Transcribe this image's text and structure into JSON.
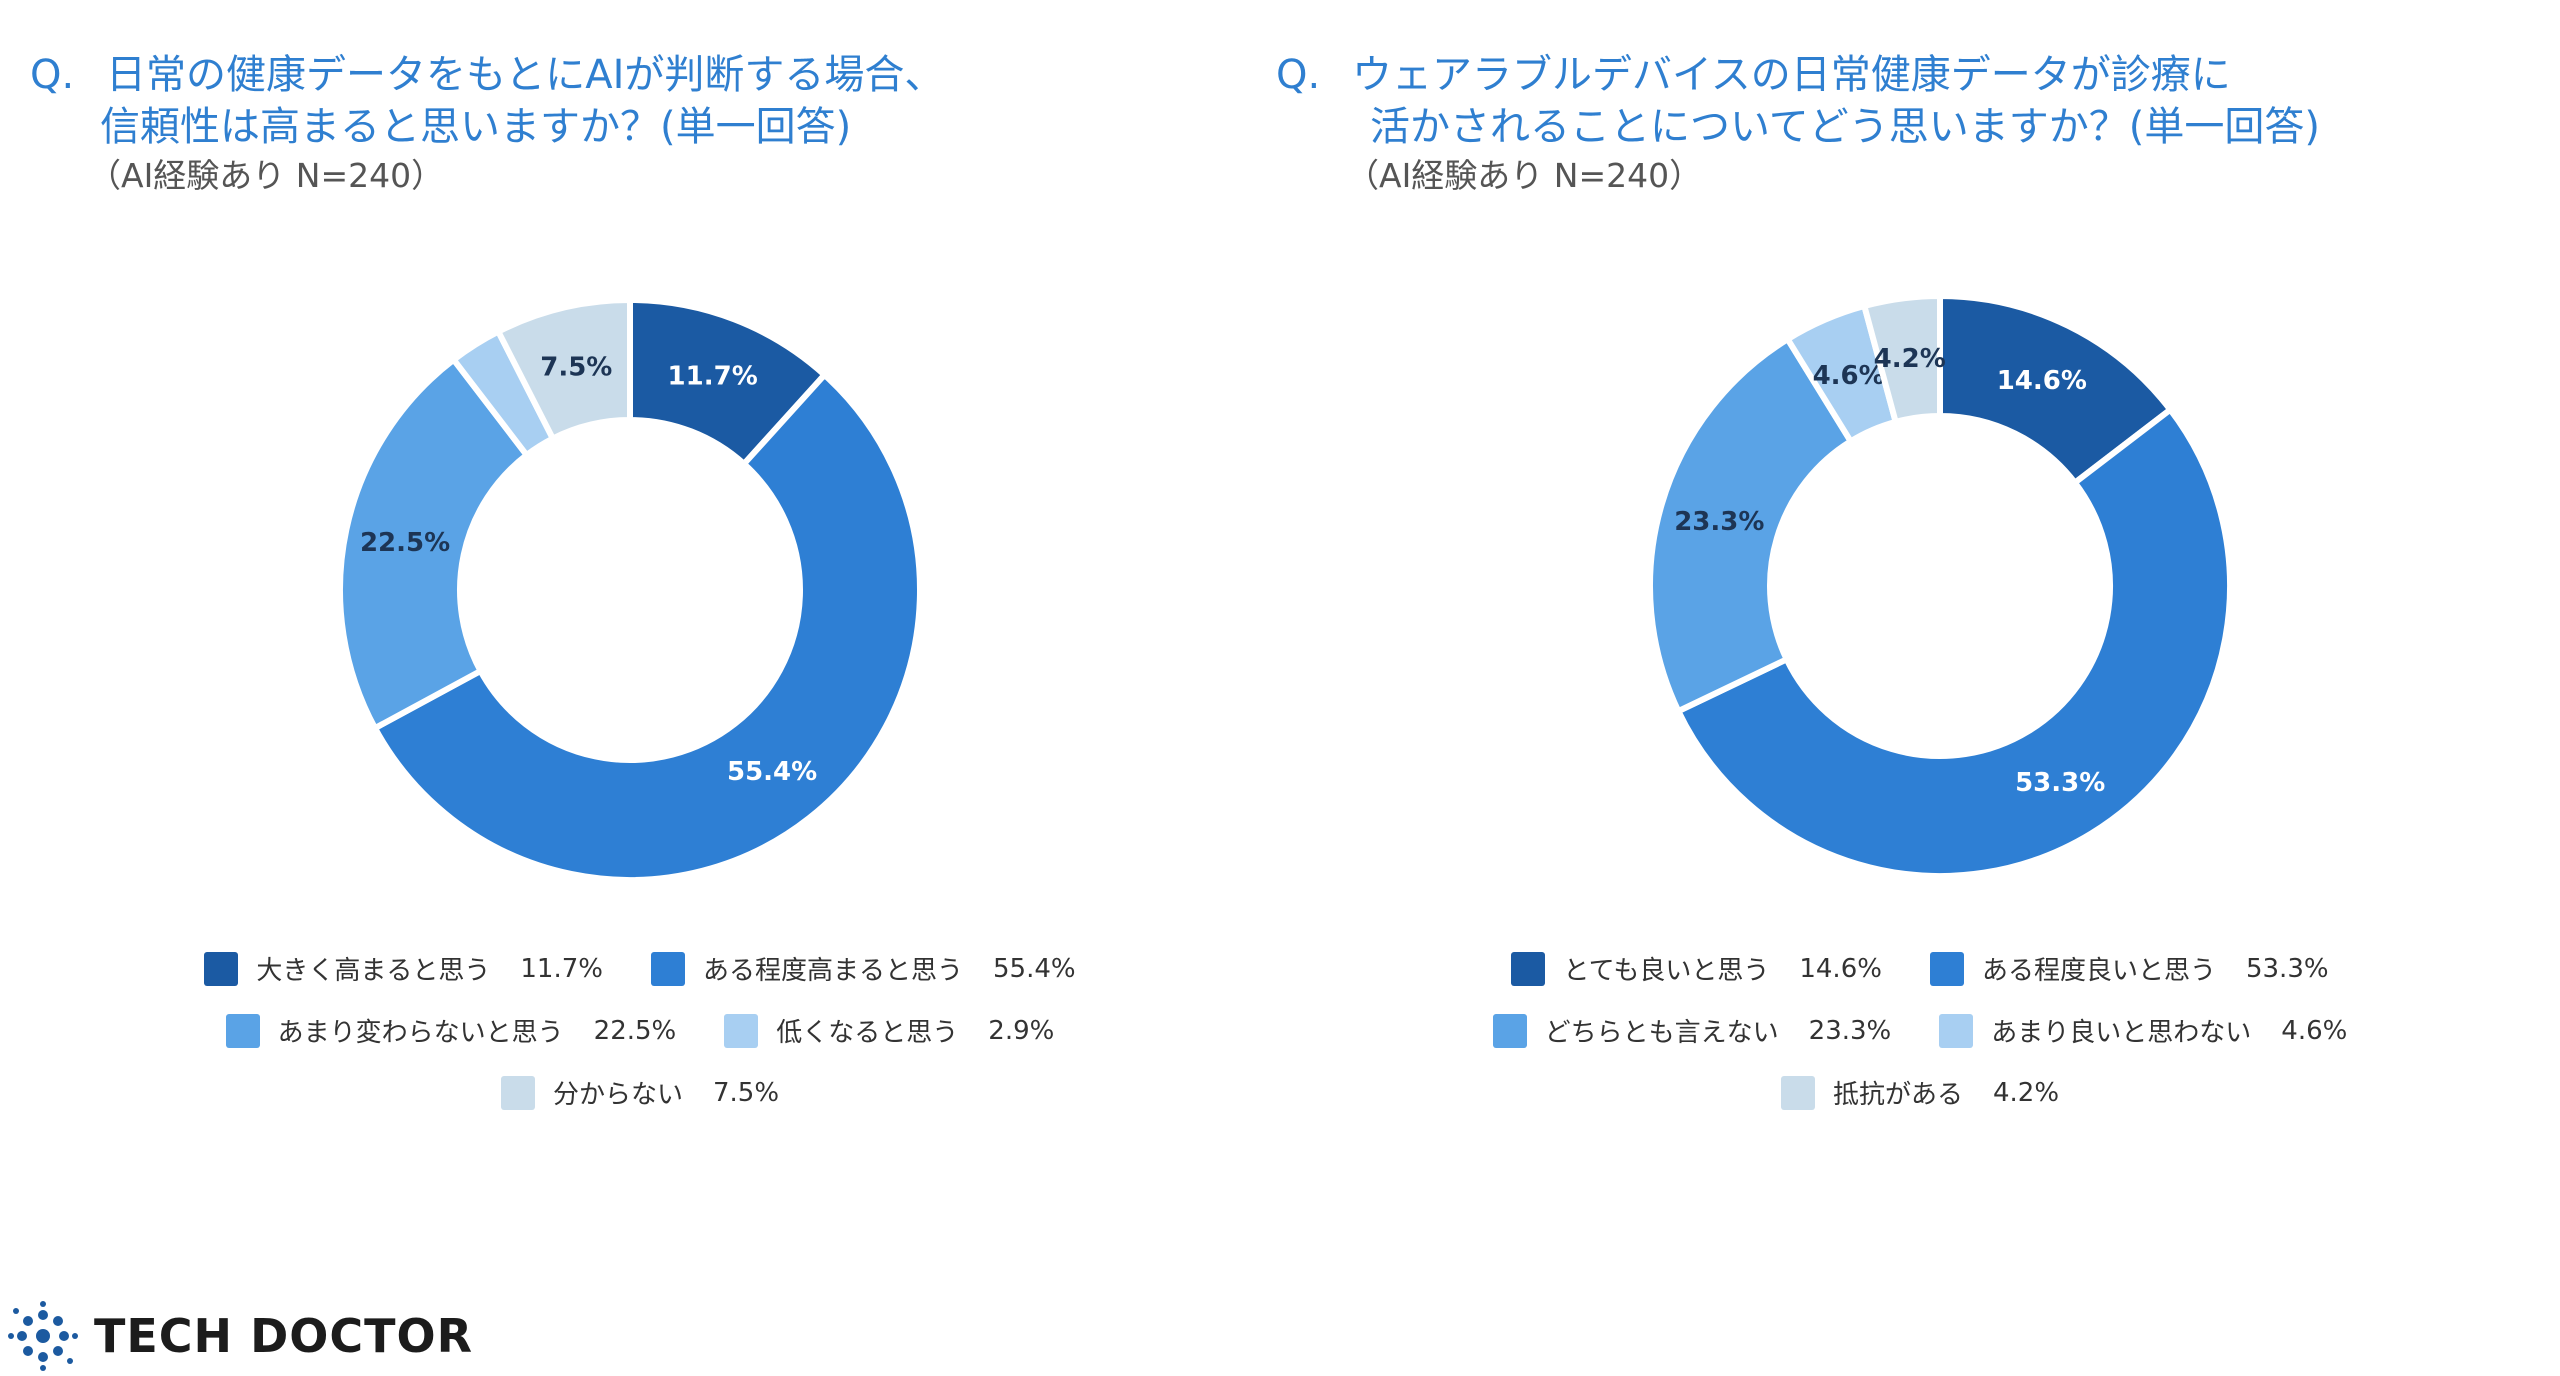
{
  "left": {
    "q_mark": "Q.",
    "question_line1": "日常の健康データをもとにAIが判断する場合、",
    "question_line2": "信頼性は高まると思いますか？(単一回答)",
    "sample": "（AI経験あり N=240）"
  },
  "right": {
    "q_mark": "Q.",
    "question_line1": "ウェアラブルデバイスの日常健康データが診療に",
    "question_line2": "活かされることについてどう思いますか？(単一回答)",
    "sample": "（AI経験あり N=240）"
  },
  "chart_data": [
    {
      "type": "pie",
      "donut": true,
      "categories": [
        "大きく高まると思う",
        "ある程度高まると思う",
        "あまり変わらないと思う",
        "低くなると思う",
        "分からない"
      ],
      "values": [
        11.7,
        55.4,
        22.5,
        2.9,
        7.5
      ],
      "labels": [
        "11.7%",
        "55.4%",
        "22.5%",
        "2.9%",
        "7.5%"
      ],
      "slice_labels": [
        "11.7%",
        "55.4%",
        "22.5%",
        "",
        "7.5%"
      ],
      "colors": [
        "#1b5aa3",
        "#2e7fd4",
        "#5aa3e6",
        "#a8cff2",
        "#c9dcea"
      ],
      "label_colors": [
        "#ffffff",
        "#ffffff",
        "#1d3555",
        "#1d3555",
        "#1d3555"
      ],
      "legend_rows": [
        [
          0,
          1
        ],
        [
          2,
          3
        ],
        [
          4
        ]
      ]
    },
    {
      "type": "pie",
      "donut": true,
      "categories": [
        "とても良いと思う",
        "ある程度良いと思う",
        "どちらとも言えない",
        "あまり良いと思わない",
        "抵抗がある"
      ],
      "values": [
        14.6,
        53.3,
        23.3,
        4.6,
        4.2
      ],
      "labels": [
        "14.6%",
        "53.3%",
        "23.3%",
        "4.6%",
        "4.2%"
      ],
      "slice_labels": [
        "14.6%",
        "53.3%",
        "23.3%",
        "4.6%",
        "4.2%"
      ],
      "colors": [
        "#1b5aa3",
        "#2e7fd4",
        "#5aa3e6",
        "#a8cff2",
        "#c9dcea"
      ],
      "label_colors": [
        "#ffffff",
        "#ffffff",
        "#1d3555",
        "#1d3555",
        "#1d3555"
      ],
      "legend_rows": [
        [
          0,
          1
        ],
        [
          2,
          3
        ],
        [
          4
        ]
      ]
    }
  ],
  "logo": {
    "text": "TECH DOCTOR",
    "icon": "molecule-dots-icon",
    "color": "#1c5aa0"
  }
}
